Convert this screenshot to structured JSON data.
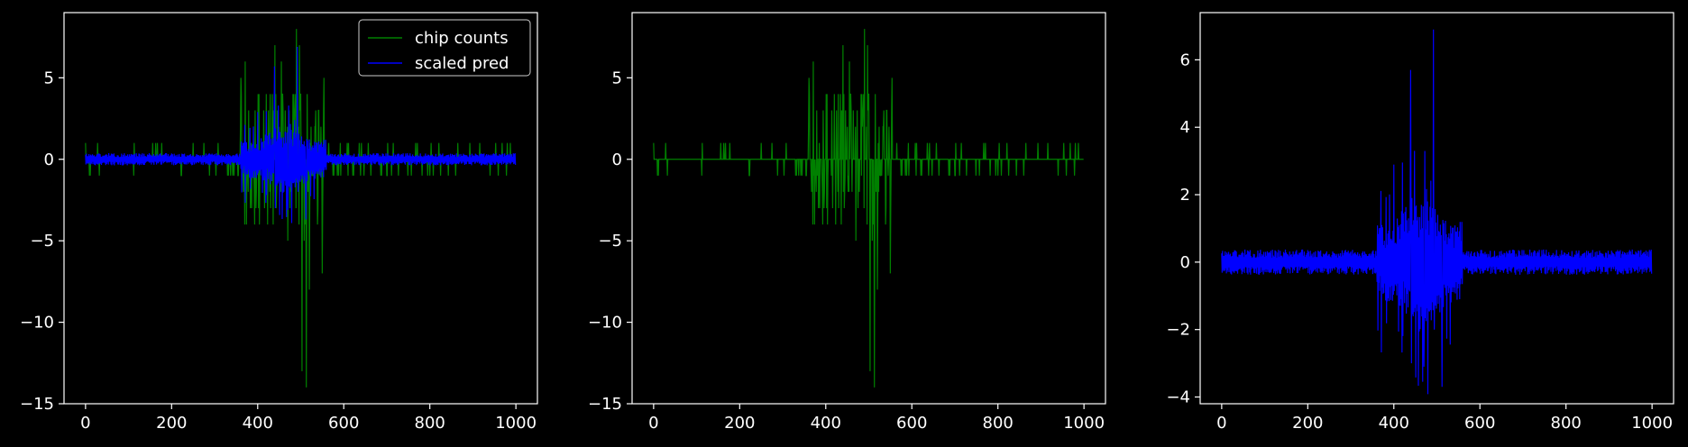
{
  "chart_data": [
    {
      "type": "line",
      "xlim": [
        -50,
        1050
      ],
      "ylim": [
        -15,
        9
      ],
      "xticks": [
        0,
        200,
        400,
        600,
        800,
        1000
      ],
      "yticks": [
        -15,
        -10,
        -5,
        0,
        5
      ],
      "ytick_labels": [
        "−15",
        "−10",
        "−5",
        "0",
        "5"
      ],
      "grid": false,
      "legend": {
        "placement": "top-right",
        "entries": [
          "chip counts",
          "scaled pred"
        ]
      },
      "series": [
        {
          "name": "chip counts",
          "color": "#008000",
          "kind": "counts",
          "n": 1000,
          "extremes": {
            "max": 8,
            "min": -14
          }
        },
        {
          "name": "scaled pred",
          "color": "#0000ff",
          "kind": "pred",
          "n": 1000,
          "extremes": {
            "max": 6.9,
            "min": -3.7
          }
        }
      ]
    },
    {
      "type": "line",
      "xlim": [
        -50,
        1050
      ],
      "ylim": [
        -15,
        9
      ],
      "xticks": [
        0,
        200,
        400,
        600,
        800,
        1000
      ],
      "yticks": [
        -15,
        -10,
        -5,
        0,
        5
      ],
      "ytick_labels": [
        "−15",
        "−10",
        "−5",
        "0",
        "5"
      ],
      "grid": false,
      "series": [
        {
          "color": "#008000",
          "kind": "counts",
          "n": 1000,
          "extremes": {
            "max": 8,
            "min": -14
          }
        }
      ]
    },
    {
      "type": "line",
      "xlim": [
        -50,
        1050
      ],
      "ylim": [
        -4.2,
        7.4
      ],
      "xticks": [
        0,
        200,
        400,
        600,
        800,
        1000
      ],
      "yticks": [
        -4,
        -2,
        0,
        2,
        4,
        6
      ],
      "ytick_labels": [
        "−4",
        "−2",
        "0",
        "2",
        "4",
        "6"
      ],
      "grid": false,
      "series": [
        {
          "color": "#0000ff",
          "kind": "pred",
          "n": 1000,
          "extremes": {
            "max": 6.9,
            "min": -3.7
          }
        }
      ]
    }
  ]
}
